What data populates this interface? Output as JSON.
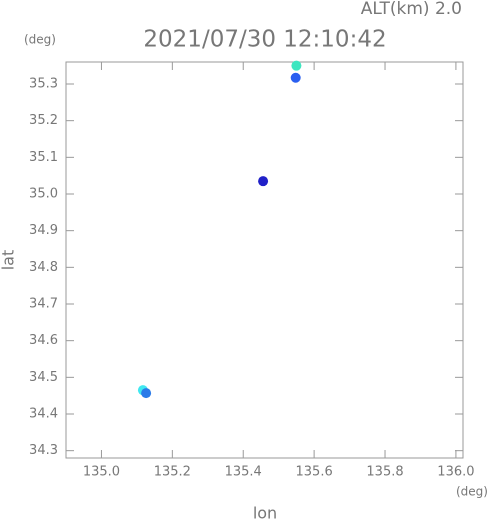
{
  "chart_data": {
    "type": "scatter",
    "title": "2021/07/30 12:10:42",
    "subtitle": "ALT(km)  2.0",
    "y_unit": "(deg)",
    "x_unit": "(deg)",
    "xlabel": "lon",
    "ylabel": "lat",
    "x": [
      135.55,
      135.548,
      135.456,
      135.117,
      135.126
    ],
    "values": [
      35.35,
      35.317,
      35.035,
      34.465,
      34.457
    ],
    "colors": [
      "#3ee6c0",
      "#2a5ff0",
      "#2020c8",
      "#40e8f0",
      "#2a7ae8"
    ],
    "xlim": [
      134.9,
      136.02
    ],
    "ylim": [
      34.28,
      35.36
    ],
    "xticks": [
      {
        "value": 135,
        "label": "135.0"
      },
      135.2,
      135.4,
      135.6,
      135.8,
      {
        "value": 136,
        "label": "136.0"
      }
    ],
    "yticks": [
      35.3,
      35.2,
      35.1,
      {
        "value": 35,
        "label": "35.0"
      },
      34.9,
      34.8,
      34.7,
      34.6,
      34.5,
      34.4,
      34.3
    ]
  }
}
